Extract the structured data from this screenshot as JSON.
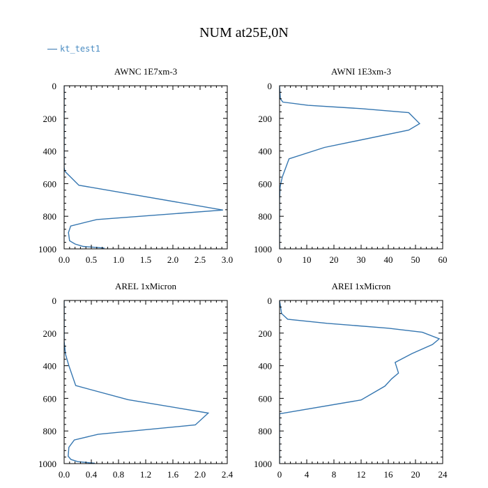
{
  "title": "NUM at25E,0N",
  "legend": {
    "label": "kt_test1",
    "color": "#3576b0"
  },
  "chart_data": [
    {
      "type": "line",
      "title": "AWNC  1E7xm-3",
      "xlim": [
        0,
        3.0
      ],
      "ylim": [
        0,
        1000
      ],
      "y_inverted": true,
      "xticks": [
        0,
        0.5,
        1.0,
        1.5,
        2.0,
        2.5,
        3.0
      ],
      "xtick_labels": [
        "0.0",
        "0.5",
        "1.0",
        "1.5",
        "2.0",
        "2.5",
        "3.0"
      ],
      "yticks": [
        0,
        200,
        400,
        600,
        800,
        1000
      ],
      "ytick_labels": [
        "0",
        "200",
        "400",
        "600",
        "800",
        "1000"
      ],
      "series": [
        {
          "name": "kt_test1",
          "x": [
            0,
            0,
            0,
            0,
            0.01,
            0.03,
            0.27,
            2.92,
            0.6,
            0.12,
            0.08,
            0.1,
            0.2,
            0.35,
            0.74
          ],
          "y": [
            0,
            100,
            300,
            500,
            520,
            530,
            610,
            762,
            820,
            860,
            900,
            950,
            970,
            985,
            995
          ]
        }
      ]
    },
    {
      "type": "line",
      "title": "AWNI  1E3xm-3",
      "xlim": [
        0,
        60
      ],
      "ylim": [
        0,
        1000
      ],
      "y_inverted": true,
      "xticks": [
        0,
        10,
        20,
        30,
        40,
        50,
        60
      ],
      "xtick_labels": [
        "0",
        "10",
        "20",
        "30",
        "40",
        "50",
        "60"
      ],
      "yticks": [
        0,
        200,
        400,
        600,
        800,
        1000
      ],
      "ytick_labels": [
        "0",
        "200",
        "400",
        "600",
        "800",
        "1000"
      ],
      "series": [
        {
          "name": "kt_test1",
          "x": [
            0,
            0.3,
            1.2,
            10.5,
            30,
            47.5,
            51.5,
            47.5,
            16.5,
            3.5,
            1,
            0.2,
            0,
            0
          ],
          "y": [
            0,
            80,
            100,
            120,
            140,
            165,
            232,
            272,
            378,
            448,
            560,
            620,
            700,
            1000
          ]
        }
      ]
    },
    {
      "type": "line",
      "title": "AREL  1xMicron",
      "xlim": [
        0,
        2.4
      ],
      "ylim": [
        0,
        1000
      ],
      "y_inverted": true,
      "xticks": [
        0,
        0.4,
        0.8,
        1.2,
        1.6,
        2.0,
        2.4
      ],
      "xtick_labels": [
        "0.0",
        "0.4",
        "0.8",
        "1.2",
        "1.6",
        "2.0",
        "2.4"
      ],
      "yticks": [
        0,
        200,
        400,
        600,
        800,
        1000
      ],
      "ytick_labels": [
        "0",
        "200",
        "400",
        "600",
        "800",
        "1000"
      ],
      "series": [
        {
          "name": "kt_test1",
          "x": [
            0,
            0,
            0.02,
            0.07,
            0.17,
            0.94,
            2.12,
            1.93,
            0.5,
            0.15,
            0.07,
            0.06,
            0.1,
            0.2,
            0.45
          ],
          "y": [
            0,
            250,
            330,
            400,
            522,
            608,
            690,
            763,
            820,
            855,
            900,
            955,
            975,
            988,
            998
          ]
        }
      ]
    },
    {
      "type": "line",
      "title": "AREI  1xMicron",
      "xlim": [
        0,
        24
      ],
      "ylim": [
        0,
        1000
      ],
      "y_inverted": true,
      "xticks": [
        0,
        4,
        8,
        12,
        16,
        20,
        24
      ],
      "xtick_labels": [
        "0",
        "4",
        "8",
        "12",
        "16",
        "20",
        "24"
      ],
      "yticks": [
        0,
        200,
        400,
        600,
        800,
        1000
      ],
      "ytick_labels": [
        "0",
        "200",
        "400",
        "600",
        "800",
        "1000"
      ],
      "series": [
        {
          "name": "kt_test1",
          "x": [
            0,
            0.3,
            1.2,
            7,
            16,
            21,
            23.5,
            22.5,
            19.5,
            17,
            17.5,
            16.5,
            15.5,
            12,
            0,
            0
          ],
          "y": [
            0,
            80,
            115,
            140,
            170,
            195,
            235,
            270,
            325,
            380,
            445,
            480,
            525,
            610,
            695,
            1000
          ]
        }
      ]
    }
  ]
}
